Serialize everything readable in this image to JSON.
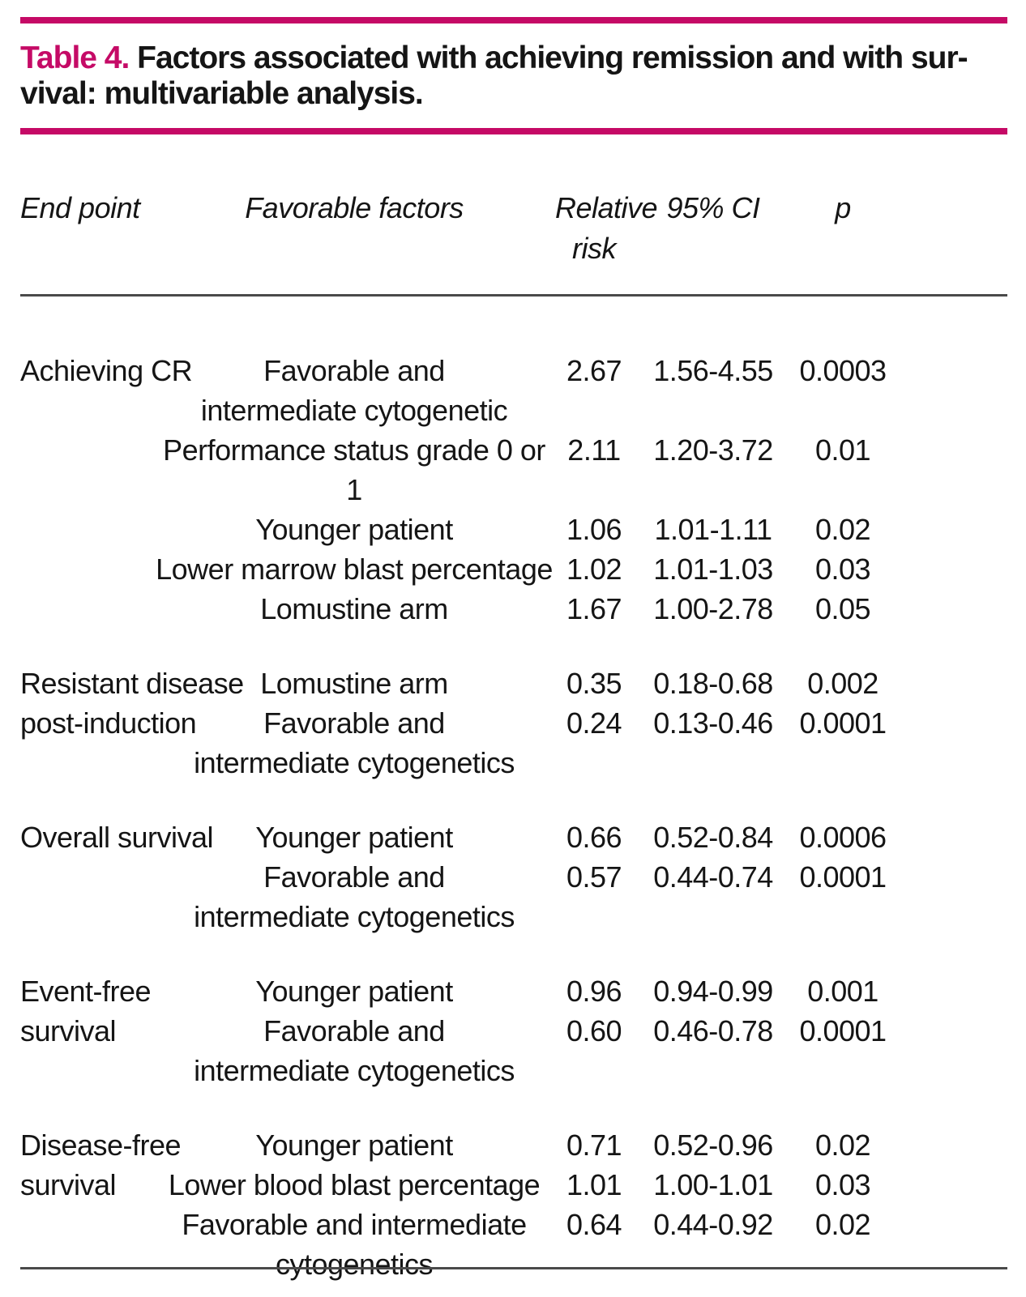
{
  "colors": {
    "accent_magenta": "#c50a66",
    "rule_gray": "#4a4a4a",
    "text": "#151515"
  },
  "title": {
    "label": "Table 4.",
    "line1": "Factors associated with achieving remission and with sur-",
    "line2": "vival: multivariable analysis."
  },
  "header": {
    "endpoint": "End point",
    "factors": "Favorable factors",
    "rr_line1": "Relative",
    "rr_line2": "risk",
    "ci": "95% CI",
    "p": "p"
  },
  "groups": [
    {
      "endpoint_lines": [
        "Achieving CR"
      ],
      "rows": [
        {
          "factor_lines": [
            "Favorable and",
            "intermediate cytogenetic"
          ],
          "rr": "2.67",
          "ci": "1.56-4.55",
          "p": "0.0003"
        },
        {
          "factor_lines": [
            "Performance status grade 0 or 1"
          ],
          "rr": "2.11",
          "ci": "1.20-3.72",
          "p": "0.01"
        },
        {
          "factor_lines": [
            "Younger patient"
          ],
          "rr": "1.06",
          "ci": "1.01-1.11",
          "p": "0.02"
        },
        {
          "factor_lines": [
            "Lower marrow blast percentage"
          ],
          "rr": "1.02",
          "ci": "1.01-1.03",
          "p": "0.03"
        },
        {
          "factor_lines": [
            "Lomustine arm"
          ],
          "rr": "1.67",
          "ci": "1.00-2.78",
          "p": "0.05"
        }
      ]
    },
    {
      "endpoint_lines": [
        "Resistant disease",
        "post-induction"
      ],
      "rows": [
        {
          "factor_lines": [
            "Lomustine arm"
          ],
          "rr": "0.35",
          "ci": "0.18-0.68",
          "p": "0.002"
        },
        {
          "factor_lines": [
            "Favorable and",
            "intermediate cytogenetics"
          ],
          "rr": "0.24",
          "ci": "0.13-0.46",
          "p": "0.0001"
        }
      ]
    },
    {
      "endpoint_lines": [
        "Overall survival"
      ],
      "rows": [
        {
          "factor_lines": [
            "Younger patient"
          ],
          "rr": "0.66",
          "ci": "0.52-0.84",
          "p": "0.0006"
        },
        {
          "factor_lines": [
            "Favorable and",
            "intermediate cytogenetics"
          ],
          "rr": "0.57",
          "ci": "0.44-0.74",
          "p": "0.0001"
        }
      ]
    },
    {
      "endpoint_lines": [
        "Event-free",
        "survival"
      ],
      "rows": [
        {
          "factor_lines": [
            "Younger patient"
          ],
          "rr": "0.96",
          "ci": "0.94-0.99",
          "p": "0.001"
        },
        {
          "factor_lines": [
            "Favorable and",
            "intermediate cytogenetics"
          ],
          "rr": "0.60",
          "ci": "0.46-0.78",
          "p": "0.0001"
        }
      ]
    },
    {
      "endpoint_lines": [
        "Disease-free",
        "survival"
      ],
      "rows": [
        {
          "factor_lines": [
            "Younger patient"
          ],
          "rr": "0.71",
          "ci": "0.52-0.96",
          "p": "0.02"
        },
        {
          "factor_lines": [
            "Lower blood blast percentage"
          ],
          "rr": "1.01",
          "ci": "1.00-1.01",
          "p": "0.03"
        },
        {
          "factor_lines": [
            "Favorable and intermediate",
            "cytogenetics"
          ],
          "rr": "0.64",
          "ci": "0.44-0.92",
          "p": "0.02"
        }
      ]
    }
  ]
}
